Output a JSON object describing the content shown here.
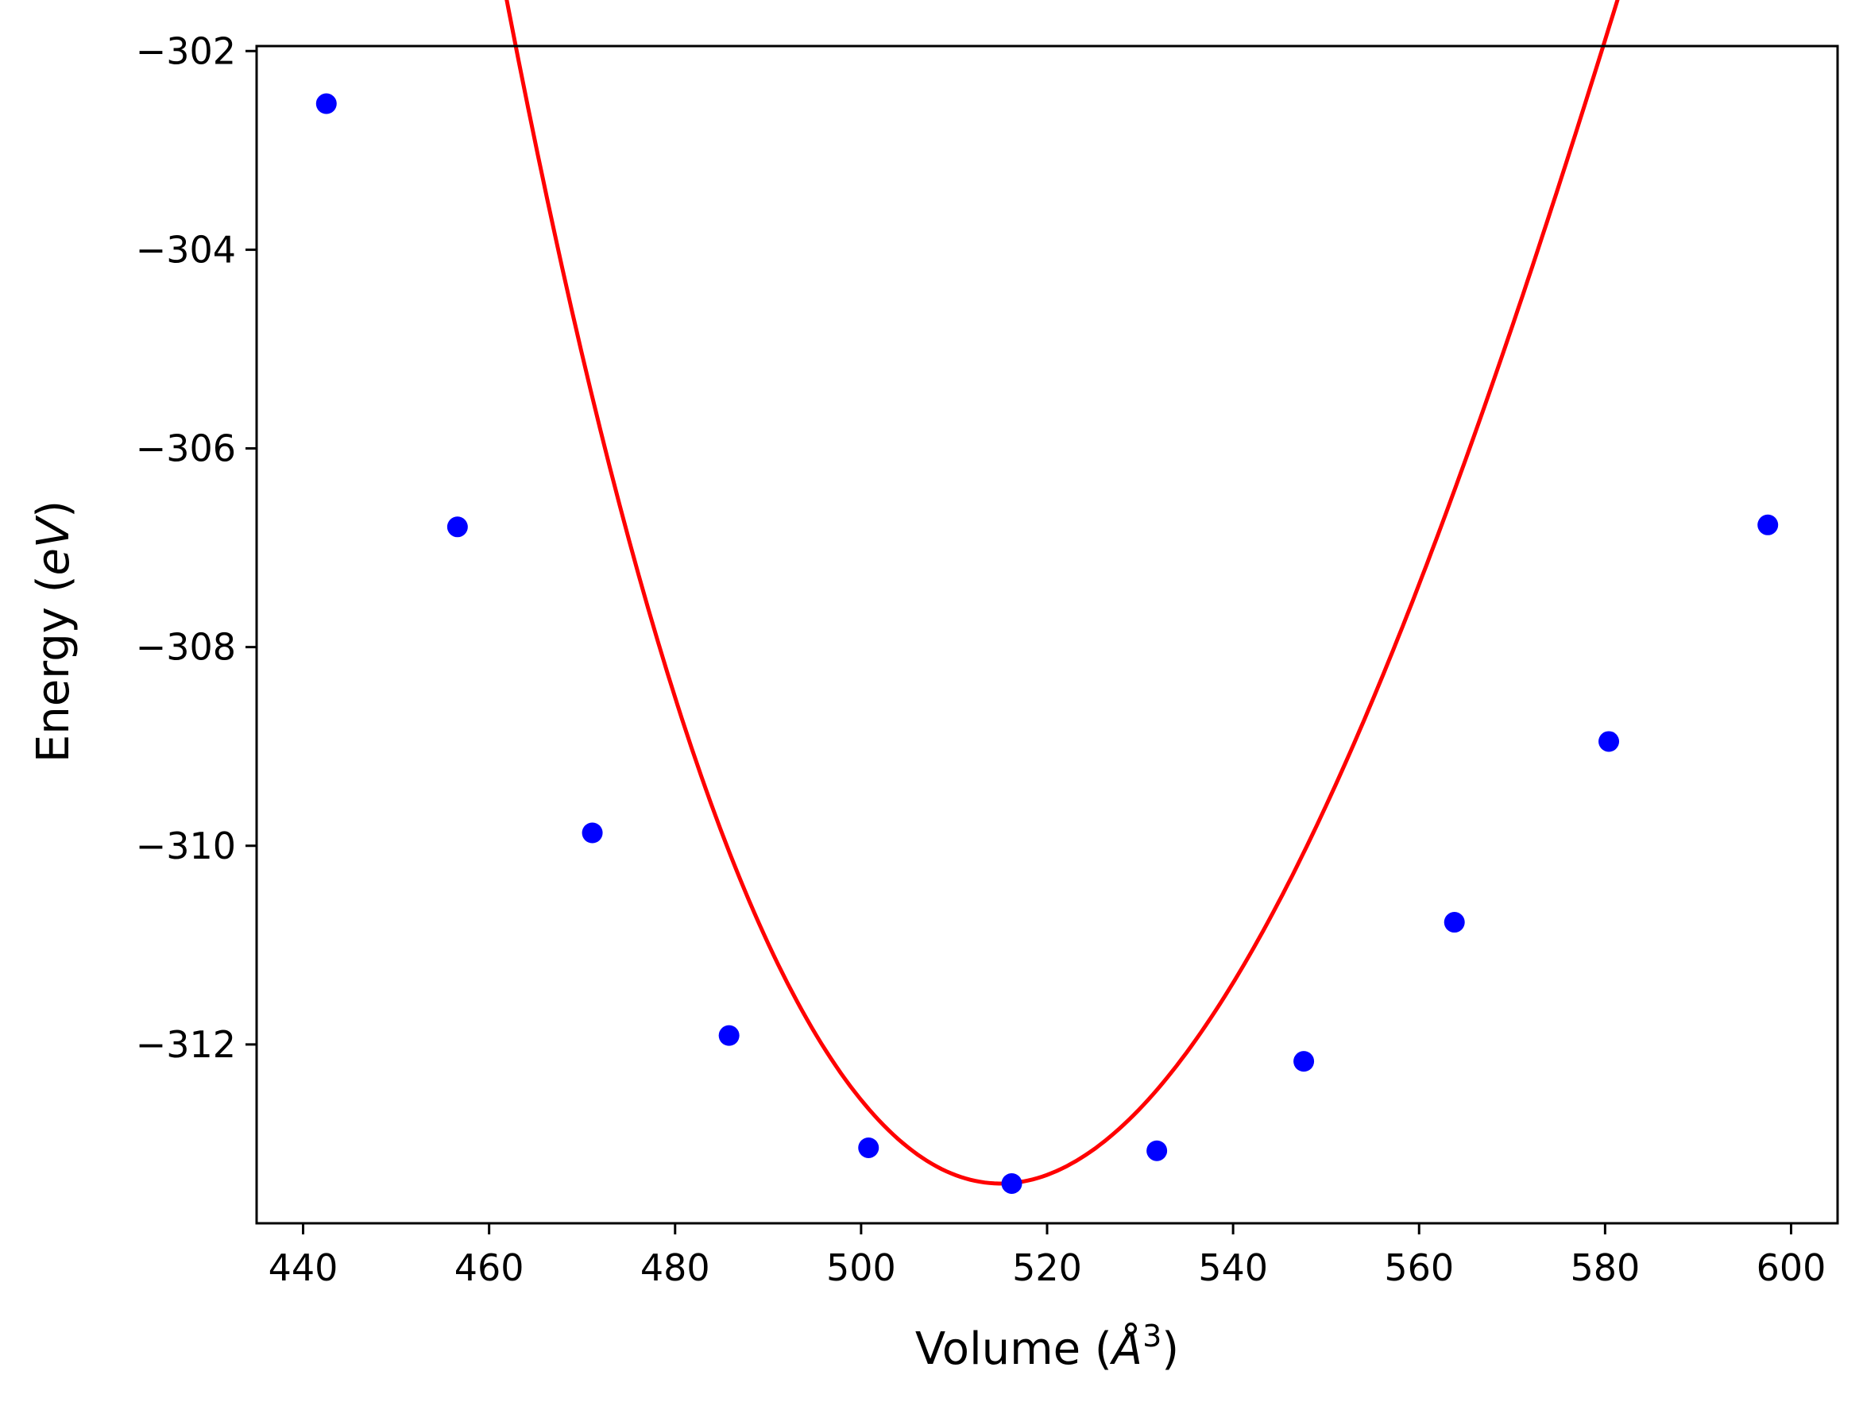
{
  "colors": {
    "fit_line": "#ff0000",
    "points": "#0000ff",
    "axes": "#000000",
    "background": "#ffffff"
  },
  "chart_data": {
    "type": "line",
    "xlabel": "Volume (Å³)",
    "xlabel_parts": {
      "prefix": "Volume (",
      "symbol": "Å",
      "sup": "3",
      "suffix": ")"
    },
    "ylabel": "Energy (eV)",
    "ylabel_parts": {
      "prefix": "Energy (",
      "italic": "eV",
      "suffix": ")"
    },
    "xlim": [
      435,
      605
    ],
    "ylim": [
      -313.8,
      -301.95
    ],
    "x_ticks": [
      440,
      460,
      480,
      500,
      520,
      540,
      560,
      580,
      600
    ],
    "y_ticks": [
      -312,
      -310,
      -308,
      -306,
      -304,
      -302
    ],
    "grid": false,
    "series": [
      {
        "type": "scatter",
        "x": [
          442.5,
          456.6,
          471.1,
          485.8,
          500.8,
          516.2,
          531.8,
          547.6,
          563.8,
          580.4,
          597.5
        ],
        "y": [
          -302.53,
          -306.79,
          -309.87,
          -311.91,
          -313.04,
          -313.4,
          -313.07,
          -312.17,
          -310.77,
          -308.95,
          -306.77
        ]
      },
      {
        "type": "line",
        "fit": {
          "model": "cubic",
          "x0": 515,
          "e0": -313.4,
          "a2": 0.00355,
          "a3": -1.27e-05
        },
        "x_range": [
          442.5,
          597.5
        ]
      }
    ]
  }
}
